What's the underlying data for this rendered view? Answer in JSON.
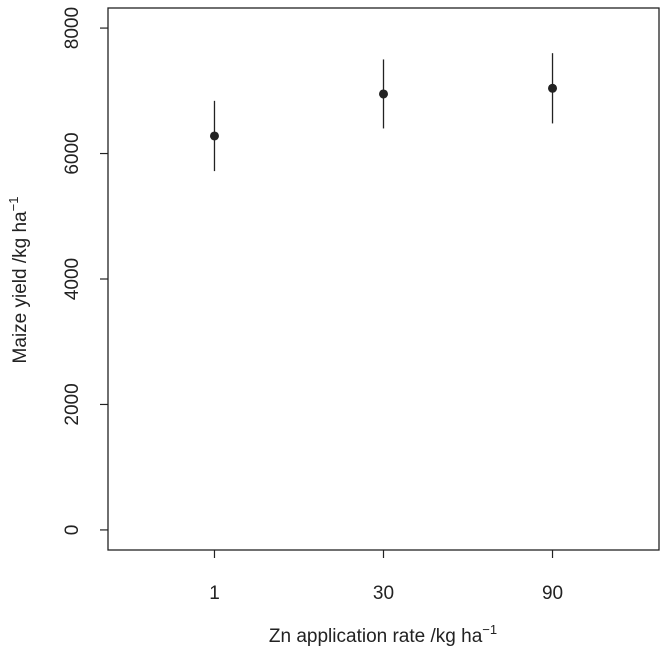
{
  "chart_data": {
    "type": "errorbar",
    "x_label": "Zn application rate /kg ha",
    "x_label_superscript": "−1",
    "y_label": "Maize yield /kg ha",
    "y_label_superscript": "−1",
    "categories": [
      "1",
      "30",
      "90"
    ],
    "series": [
      {
        "name": "Maize yield",
        "color": "#222222",
        "values": [
          6280,
          6950,
          7040
        ],
        "errors": [
          560,
          550,
          560
        ]
      }
    ],
    "ylim": [
      -320,
      8320
    ],
    "yticks": [
      0,
      2000,
      4000,
      6000,
      8000
    ]
  }
}
